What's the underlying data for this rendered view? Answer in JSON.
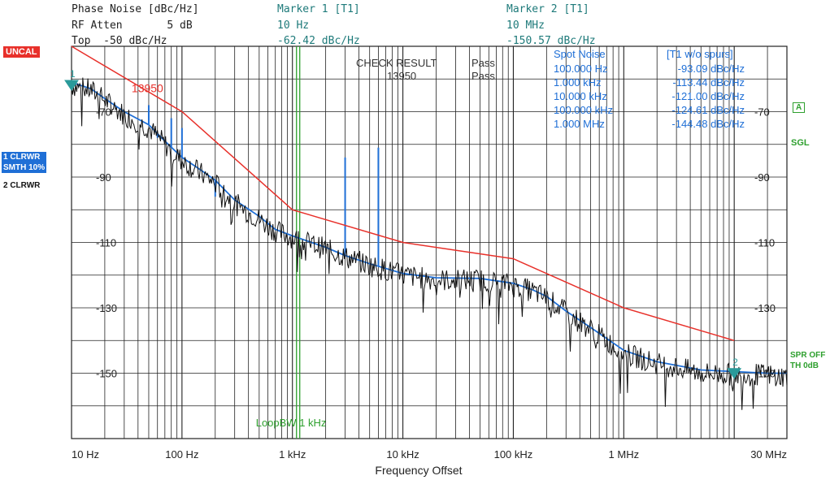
{
  "header": {
    "left": [
      "Phase Noise [dBc/Hz]",
      "RF Atten       5 dB",
      "Top  -50 dBc/Hz"
    ],
    "marker1": [
      "Marker 1 [T1]",
      "10 Hz",
      "-62.42 dBc/Hz"
    ],
    "marker2": [
      "Marker 2 [T1]",
      "10 MHz",
      "-150.57 dBc/Hz"
    ]
  },
  "side_labels": {
    "uncal": "UNCAL",
    "trace1": [
      "1 CLRWR",
      "SMTH 10%"
    ],
    "trace2": "2 CLRWR",
    "a_badge": "A",
    "sgl": "SGL",
    "spr": [
      "SPR OFF",
      "TH 0dB"
    ]
  },
  "check": {
    "label": "CHECK RESULT",
    "value": "13950",
    "pass1": "Pass",
    "pass2": "Pass"
  },
  "spot_noise": {
    "header": [
      "Spot Noise",
      "[T1 w/o spurs]"
    ],
    "rows": [
      [
        "100.000 Hz",
        "-93.09 dBc/Hz"
      ],
      [
        "1.000 kHz",
        "-113.44 dBc/Hz"
      ],
      [
        "10.000 kHz",
        "-121.00 dBc/Hz"
      ],
      [
        "100.000 kHz",
        "-124.61 dBc/Hz"
      ],
      [
        "1.000 MHz",
        "-144.48 dBc/Hz"
      ]
    ]
  },
  "colors": {
    "trace1": "#1f6fd6",
    "trace2": "#111111",
    "limit": "#e8302a",
    "marker": "#2a9a9a",
    "loop": "#2ea02e",
    "grid": "#222222"
  },
  "chart_data": {
    "type": "line",
    "xlabel": "Frequency Offset",
    "ylabel": "Phase Noise [dBc/Hz]",
    "xscale": "log",
    "xlim": [
      10,
      30000000
    ],
    "ylim": [
      -170,
      -50
    ],
    "xtick_labels": [
      {
        "x": 10,
        "label": "10 Hz"
      },
      {
        "x": 100,
        "label": "100 Hz"
      },
      {
        "x": 1000,
        "label": "1 kHz"
      },
      {
        "x": 10000,
        "label": "10 kHz"
      },
      {
        "x": 100000,
        "label": "100 kHz"
      },
      {
        "x": 1000000,
        "label": "1 MHz"
      },
      {
        "x": 30000000,
        "label": "30 MHz"
      }
    ],
    "ytick_labels": [
      {
        "y": -70,
        "label": "-70"
      },
      {
        "y": -90,
        "label": "-90"
      },
      {
        "y": -110,
        "label": "-110"
      },
      {
        "y": -130,
        "label": "-130"
      },
      {
        "y": -150,
        "label": "-150"
      }
    ],
    "grid": true,
    "series": [
      {
        "name": "1 CLRWR SMTH 10%",
        "x": [
          10,
          15,
          20,
          30,
          50,
          70,
          100,
          150,
          200,
          300,
          500,
          700,
          1000,
          2000,
          3000,
          5000,
          10000,
          20000,
          50000,
          100000,
          150000,
          200000,
          300000,
          500000,
          1000000,
          2000000,
          5000000,
          10000000,
          20000000,
          30000000
        ],
        "y": [
          -61,
          -63,
          -66,
          -70,
          -74,
          -79,
          -84,
          -88,
          -91,
          -97,
          -102,
          -106,
          -108,
          -111.5,
          -114,
          -116.5,
          -119.5,
          -120.8,
          -121,
          -122.5,
          -124.5,
          -126.5,
          -131,
          -136,
          -143,
          -146.5,
          -149,
          -149.5,
          -150,
          -150
        ]
      },
      {
        "name": "2 CLRWR",
        "x": [
          10,
          15,
          20,
          30,
          50,
          70,
          100,
          150,
          200,
          300,
          500,
          700,
          1000,
          2000,
          3000,
          5000,
          10000,
          20000,
          50000,
          100000,
          150000,
          200000,
          300000,
          500000,
          1000000,
          2000000,
          5000000,
          10000000,
          20000000,
          30000000
        ],
        "y": [
          -62,
          -63.5,
          -66.5,
          -71,
          -75,
          -80,
          -85,
          -89,
          -92,
          -98,
          -103,
          -106.5,
          -108.5,
          -112,
          -114.5,
          -117,
          -120,
          -121.5,
          -121.5,
          -123,
          -125,
          -127,
          -131.5,
          -136.5,
          -144,
          -147,
          -150,
          -150.5,
          -150.5,
          -151
        ]
      },
      {
        "name": "13950",
        "x": [
          10,
          100,
          1000,
          10000,
          100000,
          1000000,
          10000000
        ],
        "y": [
          -50,
          -70,
          -100,
          -110,
          -115,
          -130,
          -140
        ]
      }
    ],
    "spurs": [
      {
        "x": 50,
        "y": -68
      },
      {
        "x": 60,
        "y": -78
      },
      {
        "x": 80,
        "y": -72
      },
      {
        "x": 100,
        "y": -75
      },
      {
        "x": 200,
        "y": -96
      },
      {
        "x": 3000,
        "y": -84
      },
      {
        "x": 6000,
        "y": -81
      }
    ],
    "vlines": [
      {
        "x": 1000,
        "label": "LoopBW 1 kHz"
      }
    ],
    "limit_label": "13950",
    "markers": [
      {
        "name": "1",
        "x": 10,
        "y": -62.42
      },
      {
        "name": "2",
        "x": 10000000,
        "y": -150.57
      }
    ]
  }
}
